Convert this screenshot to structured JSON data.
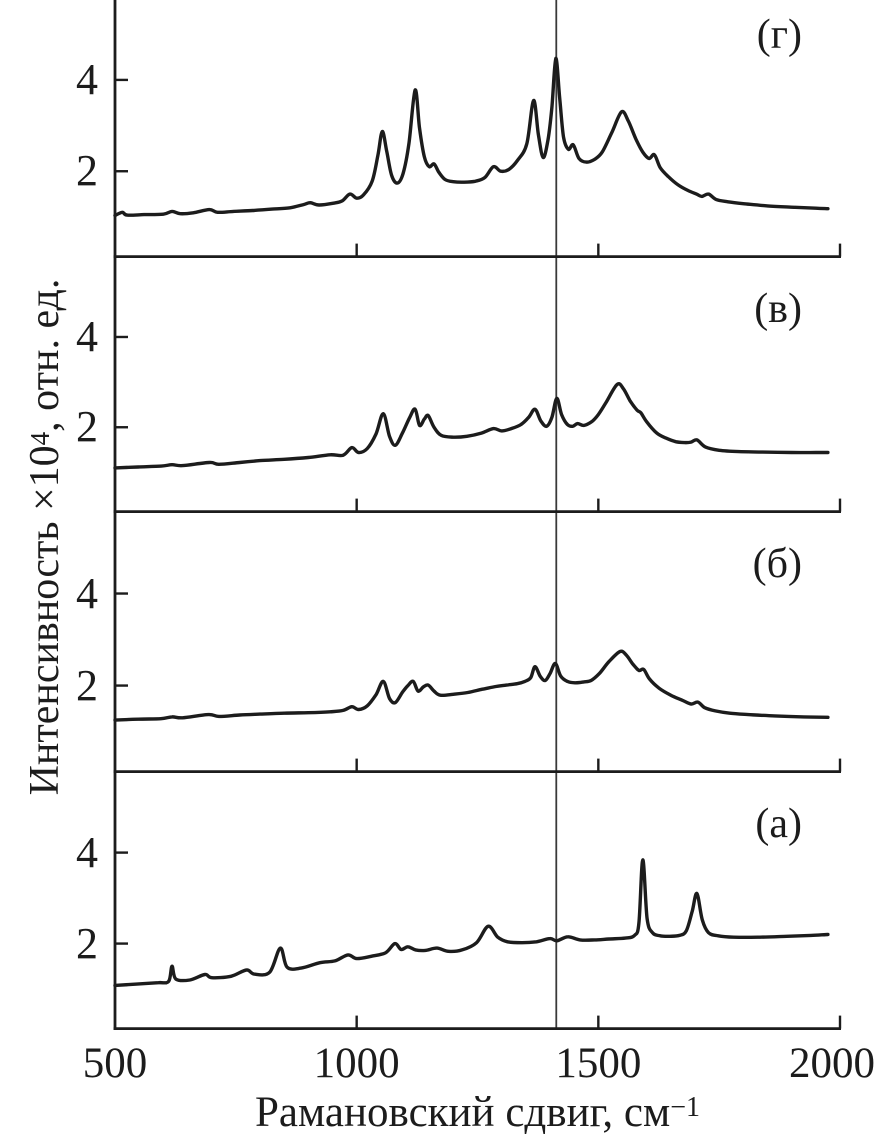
{
  "figure": {
    "background": "#ffffff",
    "ink_color": "#1c1c1c",
    "guide_line_color": "#3a3a3a"
  },
  "chart_data": {
    "type": "line",
    "title": "",
    "xlabel": "Рамановский сдвиг, см⁻¹",
    "xlabel_parts": {
      "main": "Рамановский сдвиг, см",
      "sup": "−1"
    },
    "ylabel": "Интенсивность ×10⁴, отн. ед.",
    "ylabel_parts": {
      "main": "Интенсивность ×10",
      "sup": "4",
      "rest": ", отн. ед."
    },
    "xlim": [
      500,
      2000
    ],
    "x_ticks": [
      500,
      1000,
      1500,
      2000
    ],
    "x_tick_labels": [
      "500",
      "1000",
      "1500",
      "2000"
    ],
    "panel_x_ticks": [
      1000,
      1500,
      2000
    ],
    "y_ticks": [
      4,
      2
    ],
    "y_tick_labels": [
      "4",
      "2"
    ],
    "ylim_panel": [
      0.1,
      5.75
    ],
    "grid": false,
    "legend": "none",
    "vline_x": 1413,
    "panels": [
      {
        "label": "(г)",
        "series_name": "spectrum-g",
        "points": [
          [
            500,
            1.03
          ],
          [
            515,
            1.1
          ],
          [
            525,
            1.04
          ],
          [
            560,
            1.05
          ],
          [
            600,
            1.06
          ],
          [
            618,
            1.12
          ],
          [
            635,
            1.07
          ],
          [
            662,
            1.09
          ],
          [
            695,
            1.16
          ],
          [
            712,
            1.1
          ],
          [
            745,
            1.12
          ],
          [
            785,
            1.14
          ],
          [
            825,
            1.17
          ],
          [
            862,
            1.2
          ],
          [
            890,
            1.27
          ],
          [
            904,
            1.31
          ],
          [
            922,
            1.26
          ],
          [
            952,
            1.3
          ],
          [
            970,
            1.35
          ],
          [
            986,
            1.5
          ],
          [
            1000,
            1.41
          ],
          [
            1014,
            1.48
          ],
          [
            1032,
            1.78
          ],
          [
            1044,
            2.35
          ],
          [
            1053,
            2.87
          ],
          [
            1062,
            2.45
          ],
          [
            1072,
            1.92
          ],
          [
            1084,
            1.74
          ],
          [
            1096,
            1.95
          ],
          [
            1108,
            2.6
          ],
          [
            1121,
            3.78
          ],
          [
            1130,
            2.95
          ],
          [
            1140,
            2.32
          ],
          [
            1150,
            2.1
          ],
          [
            1160,
            2.16
          ],
          [
            1170,
            1.98
          ],
          [
            1183,
            1.82
          ],
          [
            1200,
            1.77
          ],
          [
            1222,
            1.76
          ],
          [
            1245,
            1.78
          ],
          [
            1265,
            1.86
          ],
          [
            1283,
            2.1
          ],
          [
            1298,
            2.0
          ],
          [
            1315,
            2.04
          ],
          [
            1333,
            2.24
          ],
          [
            1352,
            2.6
          ],
          [
            1366,
            3.55
          ],
          [
            1376,
            2.8
          ],
          [
            1386,
            2.3
          ],
          [
            1396,
            2.7
          ],
          [
            1404,
            3.4
          ],
          [
            1412,
            4.47
          ],
          [
            1420,
            3.6
          ],
          [
            1428,
            2.75
          ],
          [
            1438,
            2.48
          ],
          [
            1448,
            2.58
          ],
          [
            1460,
            2.28
          ],
          [
            1475,
            2.2
          ],
          [
            1492,
            2.26
          ],
          [
            1508,
            2.42
          ],
          [
            1528,
            2.85
          ],
          [
            1548,
            3.3
          ],
          [
            1562,
            3.1
          ],
          [
            1578,
            2.7
          ],
          [
            1592,
            2.42
          ],
          [
            1605,
            2.28
          ],
          [
            1616,
            2.36
          ],
          [
            1628,
            2.08
          ],
          [
            1645,
            1.88
          ],
          [
            1665,
            1.7
          ],
          [
            1685,
            1.58
          ],
          [
            1703,
            1.5
          ],
          [
            1714,
            1.45
          ],
          [
            1728,
            1.5
          ],
          [
            1744,
            1.38
          ],
          [
            1768,
            1.33
          ],
          [
            1800,
            1.29
          ],
          [
            1850,
            1.24
          ],
          [
            1905,
            1.21
          ],
          [
            1950,
            1.19
          ],
          [
            1975,
            1.18
          ]
        ]
      },
      {
        "label": "(в)",
        "series_name": "spectrum-v",
        "points": [
          [
            500,
            1.1
          ],
          [
            548,
            1.12
          ],
          [
            596,
            1.14
          ],
          [
            618,
            1.17
          ],
          [
            640,
            1.15
          ],
          [
            695,
            1.22
          ],
          [
            715,
            1.18
          ],
          [
            758,
            1.22
          ],
          [
            800,
            1.26
          ],
          [
            850,
            1.29
          ],
          [
            900,
            1.33
          ],
          [
            945,
            1.39
          ],
          [
            972,
            1.38
          ],
          [
            990,
            1.55
          ],
          [
            1004,
            1.44
          ],
          [
            1022,
            1.53
          ],
          [
            1040,
            1.85
          ],
          [
            1055,
            2.3
          ],
          [
            1068,
            1.8
          ],
          [
            1080,
            1.6
          ],
          [
            1095,
            1.88
          ],
          [
            1110,
            2.22
          ],
          [
            1121,
            2.4
          ],
          [
            1130,
            2.04
          ],
          [
            1140,
            2.18
          ],
          [
            1148,
            2.26
          ],
          [
            1160,
            2.0
          ],
          [
            1175,
            1.82
          ],
          [
            1200,
            1.78
          ],
          [
            1228,
            1.8
          ],
          [
            1258,
            1.87
          ],
          [
            1283,
            1.97
          ],
          [
            1300,
            1.92
          ],
          [
            1320,
            1.97
          ],
          [
            1340,
            2.06
          ],
          [
            1356,
            2.22
          ],
          [
            1369,
            2.4
          ],
          [
            1381,
            2.14
          ],
          [
            1393,
            2.02
          ],
          [
            1404,
            2.22
          ],
          [
            1414,
            2.64
          ],
          [
            1424,
            2.28
          ],
          [
            1436,
            2.06
          ],
          [
            1447,
            2.02
          ],
          [
            1457,
            2.08
          ],
          [
            1470,
            2.04
          ],
          [
            1486,
            2.12
          ],
          [
            1500,
            2.28
          ],
          [
            1516,
            2.55
          ],
          [
            1539,
            2.95
          ],
          [
            1552,
            2.85
          ],
          [
            1566,
            2.58
          ],
          [
            1580,
            2.38
          ],
          [
            1588,
            2.32
          ],
          [
            1600,
            2.12
          ],
          [
            1621,
            1.87
          ],
          [
            1640,
            1.76
          ],
          [
            1660,
            1.68
          ],
          [
            1678,
            1.66
          ],
          [
            1692,
            1.67
          ],
          [
            1704,
            1.72
          ],
          [
            1722,
            1.56
          ],
          [
            1750,
            1.49
          ],
          [
            1790,
            1.46
          ],
          [
            1840,
            1.45
          ],
          [
            1900,
            1.44
          ],
          [
            1950,
            1.44
          ],
          [
            1975,
            1.44
          ]
        ]
      },
      {
        "label": "(б)",
        "series_name": "spectrum-b",
        "points": [
          [
            500,
            1.25
          ],
          [
            548,
            1.27
          ],
          [
            595,
            1.28
          ],
          [
            618,
            1.32
          ],
          [
            640,
            1.3
          ],
          [
            693,
            1.37
          ],
          [
            715,
            1.33
          ],
          [
            758,
            1.36
          ],
          [
            800,
            1.38
          ],
          [
            850,
            1.4
          ],
          [
            900,
            1.41
          ],
          [
            945,
            1.43
          ],
          [
            972,
            1.46
          ],
          [
            990,
            1.54
          ],
          [
            1004,
            1.48
          ],
          [
            1022,
            1.56
          ],
          [
            1040,
            1.8
          ],
          [
            1055,
            2.09
          ],
          [
            1068,
            1.72
          ],
          [
            1080,
            1.63
          ],
          [
            1095,
            1.86
          ],
          [
            1106,
            2.0
          ],
          [
            1117,
            2.09
          ],
          [
            1127,
            1.88
          ],
          [
            1138,
            1.97
          ],
          [
            1148,
            2.01
          ],
          [
            1160,
            1.88
          ],
          [
            1173,
            1.79
          ],
          [
            1200,
            1.81
          ],
          [
            1230,
            1.85
          ],
          [
            1260,
            1.92
          ],
          [
            1288,
            1.98
          ],
          [
            1310,
            2.01
          ],
          [
            1332,
            2.04
          ],
          [
            1348,
            2.09
          ],
          [
            1360,
            2.17
          ],
          [
            1369,
            2.41
          ],
          [
            1380,
            2.2
          ],
          [
            1390,
            2.11
          ],
          [
            1400,
            2.26
          ],
          [
            1411,
            2.48
          ],
          [
            1422,
            2.21
          ],
          [
            1436,
            2.09
          ],
          [
            1452,
            2.06
          ],
          [
            1470,
            2.08
          ],
          [
            1485,
            2.11
          ],
          [
            1502,
            2.26
          ],
          [
            1522,
            2.52
          ],
          [
            1545,
            2.74
          ],
          [
            1558,
            2.66
          ],
          [
            1572,
            2.46
          ],
          [
            1584,
            2.33
          ],
          [
            1594,
            2.35
          ],
          [
            1606,
            2.14
          ],
          [
            1626,
            1.94
          ],
          [
            1650,
            1.79
          ],
          [
            1674,
            1.68
          ],
          [
            1692,
            1.6
          ],
          [
            1706,
            1.64
          ],
          [
            1720,
            1.52
          ],
          [
            1742,
            1.45
          ],
          [
            1772,
            1.4
          ],
          [
            1810,
            1.37
          ],
          [
            1865,
            1.34
          ],
          [
            1925,
            1.32
          ],
          [
            1975,
            1.31
          ]
        ]
      },
      {
        "label": "(а)",
        "series_name": "spectrum-a",
        "points": [
          [
            500,
            1.08
          ],
          [
            545,
            1.11
          ],
          [
            590,
            1.14
          ],
          [
            611,
            1.17
          ],
          [
            618,
            1.5
          ],
          [
            626,
            1.22
          ],
          [
            655,
            1.2
          ],
          [
            686,
            1.32
          ],
          [
            700,
            1.25
          ],
          [
            740,
            1.28
          ],
          [
            772,
            1.42
          ],
          [
            788,
            1.33
          ],
          [
            820,
            1.37
          ],
          [
            842,
            1.9
          ],
          [
            856,
            1.48
          ],
          [
            885,
            1.46
          ],
          [
            924,
            1.58
          ],
          [
            955,
            1.62
          ],
          [
            982,
            1.75
          ],
          [
            1000,
            1.67
          ],
          [
            1030,
            1.72
          ],
          [
            1060,
            1.8
          ],
          [
            1079,
            2.0
          ],
          [
            1092,
            1.87
          ],
          [
            1106,
            1.93
          ],
          [
            1122,
            1.86
          ],
          [
            1142,
            1.85
          ],
          [
            1166,
            1.9
          ],
          [
            1190,
            1.83
          ],
          [
            1218,
            1.86
          ],
          [
            1248,
            2.02
          ],
          [
            1272,
            2.38
          ],
          [
            1292,
            2.14
          ],
          [
            1312,
            2.04
          ],
          [
            1342,
            2.02
          ],
          [
            1372,
            2.04
          ],
          [
            1400,
            2.11
          ],
          [
            1414,
            2.06
          ],
          [
            1437,
            2.15
          ],
          [
            1462,
            2.08
          ],
          [
            1492,
            2.08
          ],
          [
            1522,
            2.1
          ],
          [
            1556,
            2.12
          ],
          [
            1575,
            2.18
          ],
          [
            1584,
            2.45
          ],
          [
            1592,
            3.84
          ],
          [
            1601,
            2.55
          ],
          [
            1612,
            2.24
          ],
          [
            1628,
            2.17
          ],
          [
            1648,
            2.16
          ],
          [
            1668,
            2.18
          ],
          [
            1682,
            2.28
          ],
          [
            1694,
            2.7
          ],
          [
            1704,
            3.1
          ],
          [
            1715,
            2.52
          ],
          [
            1728,
            2.24
          ],
          [
            1748,
            2.17
          ],
          [
            1780,
            2.14
          ],
          [
            1830,
            2.14
          ],
          [
            1890,
            2.16
          ],
          [
            1940,
            2.18
          ],
          [
            1975,
            2.2
          ]
        ]
      }
    ]
  }
}
